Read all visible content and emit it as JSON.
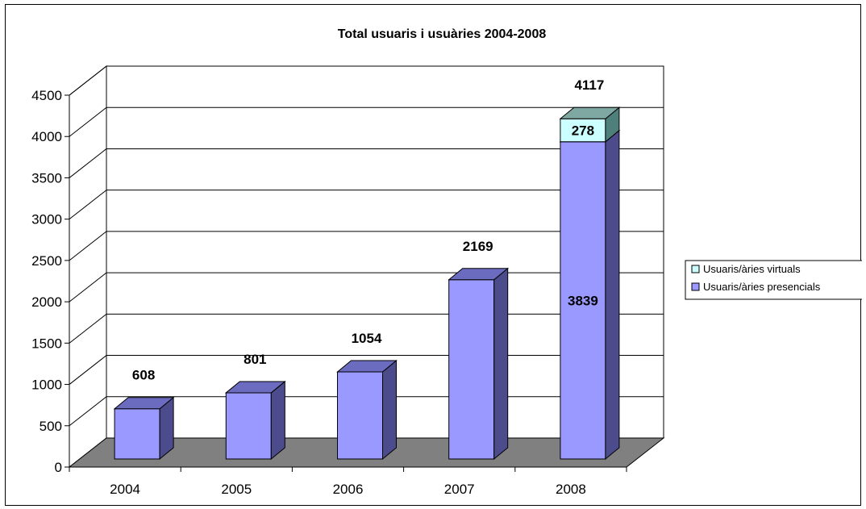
{
  "chart_data": {
    "type": "bar",
    "title": "Total usuaris i usuàries 2004-2008",
    "xlabel": "",
    "ylabel": "",
    "categories": [
      "2004",
      "2005",
      "2006",
      "2007",
      "2008"
    ],
    "series": [
      {
        "name": "Usuaris/àries presencials",
        "values": [
          608,
          801,
          1054,
          2169,
          3839
        ],
        "color": "#9999ff",
        "side_color": "#4c4c8c",
        "top_color": "#6b6bbf"
      },
      {
        "name": "Usuaris/àries virtuals",
        "values": [
          0,
          0,
          0,
          0,
          278
        ],
        "color": "#ccffff",
        "side_color": "#4f7f7a",
        "top_color": "#7fa8a3"
      }
    ],
    "totals": [
      608,
      801,
      1054,
      2169,
      4117
    ],
    "segment_labels": [
      {
        "category": "2008",
        "series": "Usuaris/àries presencials",
        "text": "3839"
      },
      {
        "category": "2008",
        "series": "Usuaris/àries virtuals",
        "text": "278"
      }
    ],
    "ylim": [
      0,
      4500
    ],
    "yticks": [
      0,
      500,
      1000,
      1500,
      2000,
      2500,
      3000,
      3500,
      4000,
      4500
    ],
    "grid": true,
    "stacked": true,
    "three_d": true,
    "legend_position": "right",
    "floor_color": "#808080"
  }
}
